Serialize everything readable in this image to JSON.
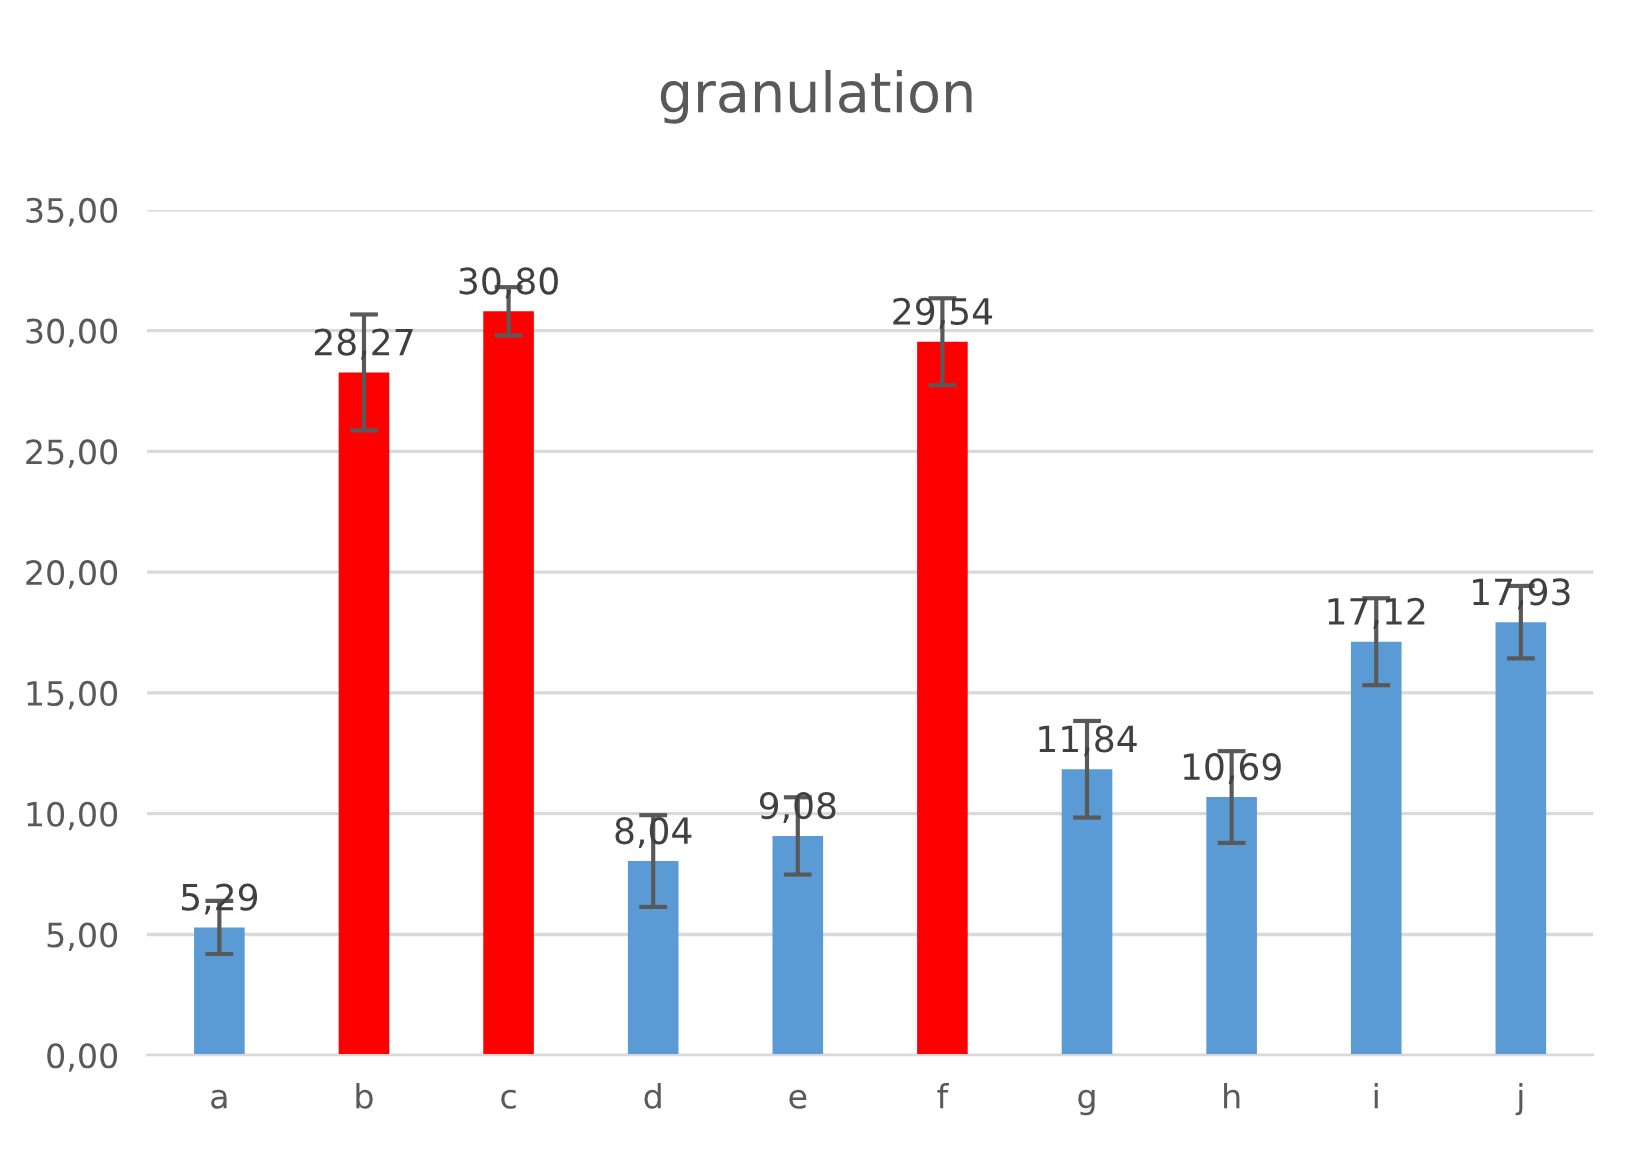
{
  "chart_data": {
    "type": "bar",
    "title": "granulation",
    "categories": [
      "a",
      "b",
      "c",
      "d",
      "e",
      "f",
      "g",
      "h",
      "i",
      "j"
    ],
    "values": [
      5.29,
      28.27,
      30.8,
      8.04,
      9.08,
      29.54,
      11.84,
      10.69,
      17.12,
      17.93
    ],
    "value_labels": [
      "5,29",
      "28,27",
      "30,80",
      "8,04",
      "9,08",
      "29,54",
      "11,84",
      "10,69",
      "17,12",
      "17,93"
    ],
    "colors": [
      "#5b9bd5",
      "#ff0000",
      "#ff0000",
      "#5b9bd5",
      "#5b9bd5",
      "#ff0000",
      "#5b9bd5",
      "#5b9bd5",
      "#5b9bd5",
      "#5b9bd5"
    ],
    "errors": [
      1.1,
      2.4,
      1.0,
      1.9,
      1.6,
      1.8,
      2.0,
      1.9,
      1.8,
      1.5
    ],
    "ylim": [
      0,
      35
    ],
    "yticks": [
      {
        "value": 0,
        "label": "0,00"
      },
      {
        "value": 5,
        "label": "5,00"
      },
      {
        "value": 10,
        "label": "10,00"
      },
      {
        "value": 15,
        "label": "15,00"
      },
      {
        "value": 20,
        "label": "20,00"
      },
      {
        "value": 25,
        "label": "25,00"
      },
      {
        "value": 30,
        "label": "30,00"
      },
      {
        "value": 35,
        "label": "35,00"
      }
    ],
    "grid": "y",
    "legend": false
  }
}
